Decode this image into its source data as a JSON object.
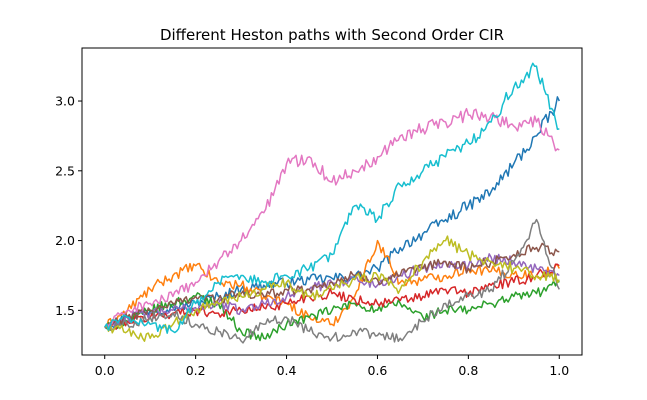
{
  "chart_data": {
    "type": "line",
    "title": "Different Heston paths with Second Order CIR",
    "xlabel": "",
    "ylabel": "",
    "xlim": [
      -0.05,
      1.05
    ],
    "ylim": [
      1.18,
      3.38
    ],
    "xticks": [
      0.0,
      0.2,
      0.4,
      0.6,
      0.8,
      1.0
    ],
    "xtick_labels": [
      "0.0",
      "0.2",
      "0.4",
      "0.6",
      "0.8",
      "1.0"
    ],
    "yticks": [
      1.5,
      2.0,
      2.5,
      3.0
    ],
    "ytick_labels": [
      "1.5",
      "2.0",
      "2.5",
      "3.0"
    ],
    "grid": false,
    "legend": "none",
    "x": [
      0.0,
      0.05,
      0.1,
      0.15,
      0.2,
      0.25,
      0.3,
      0.35,
      0.4,
      0.45,
      0.5,
      0.55,
      0.6,
      0.65,
      0.7,
      0.75,
      0.8,
      0.85,
      0.9,
      0.95,
      1.0
    ],
    "series": [
      {
        "color": "#1f77b4",
        "values": [
          1.38,
          1.45,
          1.5,
          1.52,
          1.55,
          1.6,
          1.65,
          1.68,
          1.7,
          1.72,
          1.73,
          1.74,
          1.8,
          1.95,
          2.05,
          2.15,
          2.25,
          2.35,
          2.55,
          2.75,
          3.0
        ]
      },
      {
        "color": "#ff7f0e",
        "values": [
          1.38,
          1.5,
          1.65,
          1.75,
          1.82,
          1.7,
          1.68,
          1.6,
          1.55,
          1.45,
          1.4,
          1.6,
          2.0,
          1.7,
          1.72,
          1.75,
          1.8,
          1.78,
          1.76,
          1.75,
          1.8
        ]
      },
      {
        "color": "#2ca02c",
        "values": [
          1.38,
          1.42,
          1.5,
          1.55,
          1.6,
          1.55,
          1.35,
          1.3,
          1.4,
          1.45,
          1.5,
          1.55,
          1.5,
          1.55,
          1.45,
          1.5,
          1.5,
          1.55,
          1.6,
          1.62,
          1.7
        ]
      },
      {
        "color": "#d62728",
        "values": [
          1.38,
          1.42,
          1.45,
          1.48,
          1.5,
          1.48,
          1.5,
          1.52,
          1.55,
          1.6,
          1.62,
          1.58,
          1.55,
          1.57,
          1.6,
          1.65,
          1.62,
          1.68,
          1.7,
          1.75,
          1.82
        ]
      },
      {
        "color": "#9467bd",
        "values": [
          1.38,
          1.45,
          1.48,
          1.5,
          1.52,
          1.55,
          1.5,
          1.55,
          1.6,
          1.65,
          1.7,
          1.72,
          1.68,
          1.75,
          1.8,
          1.85,
          1.82,
          1.88,
          1.85,
          1.8,
          1.75
        ]
      },
      {
        "color": "#8c564b",
        "values": [
          1.38,
          1.45,
          1.5,
          1.55,
          1.6,
          1.58,
          1.62,
          1.6,
          1.65,
          1.65,
          1.7,
          1.75,
          1.72,
          1.75,
          1.8,
          1.85,
          1.8,
          1.85,
          1.9,
          1.95,
          1.92
        ]
      },
      {
        "color": "#e377c2",
        "values": [
          1.38,
          1.5,
          1.55,
          1.6,
          1.7,
          1.85,
          2.0,
          2.2,
          2.55,
          2.6,
          2.42,
          2.5,
          2.6,
          2.75,
          2.8,
          2.85,
          2.9,
          2.9,
          2.82,
          2.85,
          2.65
        ]
      },
      {
        "color": "#7f7f7f",
        "values": [
          1.38,
          1.4,
          1.45,
          1.48,
          1.4,
          1.35,
          1.28,
          1.4,
          1.45,
          1.35,
          1.3,
          1.35,
          1.32,
          1.3,
          1.42,
          1.55,
          1.6,
          1.65,
          1.85,
          2.15,
          1.65
        ]
      },
      {
        "color": "#bcbd22",
        "values": [
          1.38,
          1.35,
          1.3,
          1.4,
          1.5,
          1.55,
          1.6,
          1.65,
          1.7,
          1.6,
          1.65,
          1.72,
          1.75,
          1.65,
          1.85,
          2.0,
          1.9,
          1.85,
          1.8,
          1.75,
          1.72
        ]
      },
      {
        "color": "#17becf",
        "values": [
          1.38,
          1.45,
          1.4,
          1.35,
          1.55,
          1.7,
          1.75,
          1.7,
          1.75,
          1.8,
          1.9,
          2.25,
          2.15,
          2.4,
          2.5,
          2.6,
          2.7,
          2.85,
          3.1,
          3.25,
          2.8
        ]
      }
    ]
  }
}
